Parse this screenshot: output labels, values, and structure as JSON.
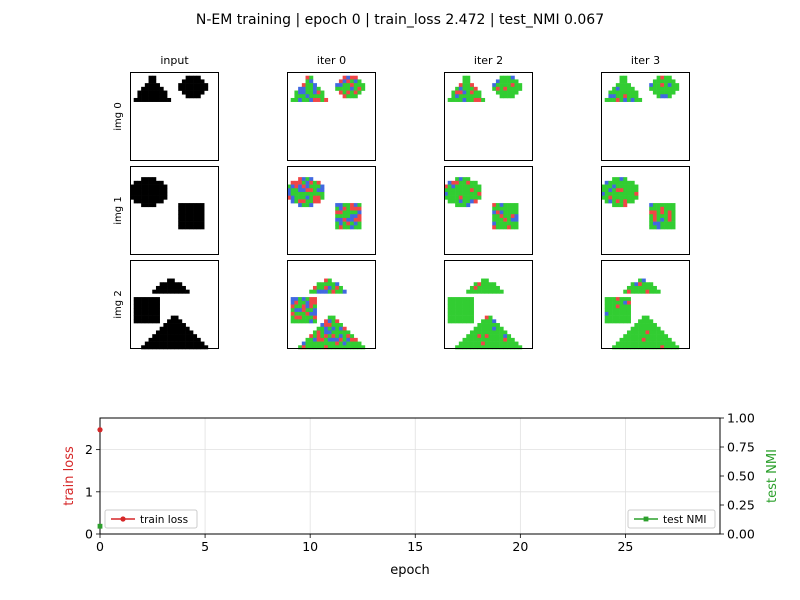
{
  "figure": {
    "title": "N-EM training | epoch   0 | train_loss 2.472 | test_NMI 0.067"
  },
  "grid": {
    "column_titles": [
      "input",
      "iter 0",
      "iter 2",
      "iter 3"
    ],
    "row_labels": [
      "img 0",
      "img 1",
      "img 2"
    ],
    "pixel_grid": 24,
    "colors": {
      "input_fg": "#000000",
      "cluster_a": "#32cd32",
      "cluster_b": "#f04646",
      "cluster_c": "#4169e1",
      "background": "#ffffff"
    },
    "images": [
      {
        "shapes": [
          {
            "kind": "triangle",
            "apex_col": 6,
            "apex_row": 1,
            "half_base": 5,
            "base_row": 8
          },
          {
            "kind": "blob",
            "cx": 17,
            "cy": 4,
            "rx": 4,
            "ry": 3
          }
        ],
        "green_fraction_by_iter": [
          0.55,
          0.75,
          0.82
        ]
      },
      {
        "shapes": [
          {
            "kind": "blob",
            "cx": 5,
            "cy": 7,
            "rx": 5,
            "ry": 4
          },
          {
            "kind": "square",
            "col": 13,
            "row": 10,
            "w": 7,
            "h": 7
          }
        ],
        "green_fraction_by_iter": [
          0.5,
          0.72,
          0.78
        ]
      },
      {
        "shapes": [
          {
            "kind": "triangle",
            "apex_col": 11,
            "apex_row": 5,
            "half_base": 5,
            "base_row": 9
          },
          {
            "kind": "square",
            "col": 1,
            "row": 10,
            "w": 7,
            "h": 7
          },
          {
            "kind": "triangle",
            "apex_col": 12,
            "apex_row": 15,
            "half_base": 9,
            "base_row": 24
          }
        ],
        "green_fraction_by_iter": [
          0.6,
          0.9,
          0.93
        ]
      }
    ]
  },
  "chart_data": {
    "type": "line",
    "xlabel": "epoch",
    "ylabel_left": "train loss",
    "ylabel_right": "test NMI",
    "xlim": [
      0,
      29.5
    ],
    "ylim_left": [
      0,
      2.75
    ],
    "ylim_right": [
      0,
      1.0
    ],
    "xticks": [
      "0",
      "5",
      "10",
      "15",
      "20",
      "25"
    ],
    "yticks_left": [
      "0",
      "1",
      "2"
    ],
    "yticks_right": [
      "0.00",
      "0.25",
      "0.50",
      "0.75",
      "1.00"
    ],
    "grid": true,
    "series": [
      {
        "name": "train loss",
        "axis": "left",
        "color": "#d62728",
        "x": [
          0
        ],
        "y": [
          2.472
        ],
        "legend": "lower-left"
      },
      {
        "name": "test NMI",
        "axis": "right",
        "color": "#2ca02c",
        "x": [
          0
        ],
        "y": [
          0.067
        ],
        "legend": "lower-right"
      }
    ]
  }
}
